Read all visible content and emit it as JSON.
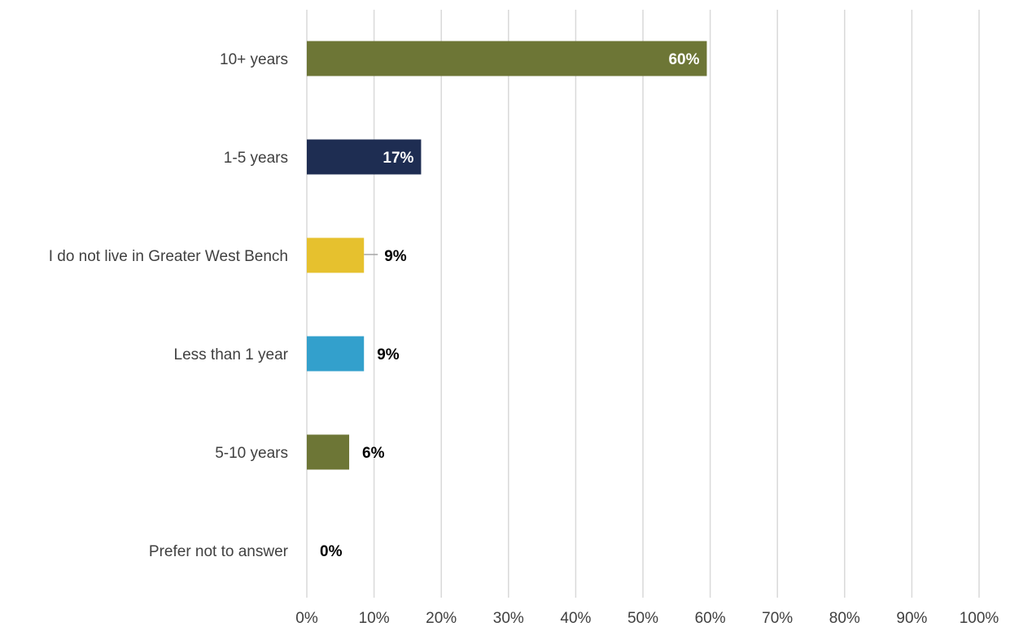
{
  "chart_data": {
    "type": "bar",
    "orientation": "horizontal",
    "categories": [
      "10+ years",
      "1-5 years",
      "I do not live in Greater West Bench",
      "Less than 1 year",
      "5-10 years",
      "Prefer not to answer"
    ],
    "values": [
      59.5,
      17,
      8.5,
      8.5,
      6.3,
      0
    ],
    "data_labels": [
      "60%",
      "17%",
      "9%",
      "9%",
      "6%",
      "0%"
    ],
    "bar_colors": [
      "#6d7636",
      "#1e2d52",
      "#e6c12e",
      "#33a0cc",
      "#6d7636",
      "#6d7636"
    ],
    "xlim": [
      0,
      100
    ],
    "x_ticks": [
      0,
      10,
      20,
      30,
      40,
      50,
      60,
      70,
      80,
      90,
      100
    ],
    "x_tick_labels": [
      "0%",
      "10%",
      "20%",
      "30%",
      "40%",
      "50%",
      "60%",
      "70%",
      "80%",
      "90%",
      "100%"
    ],
    "grid": true,
    "title": "",
    "xlabel": "",
    "ylabel": ""
  }
}
